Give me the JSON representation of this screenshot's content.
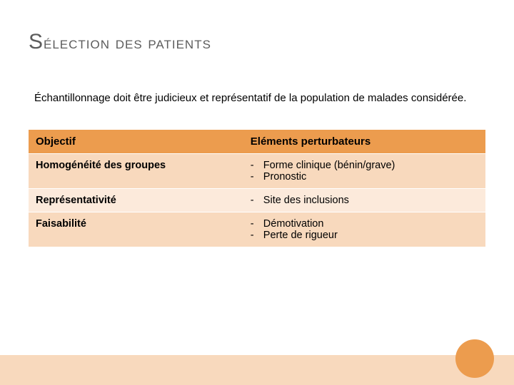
{
  "title": {
    "first_char": "S",
    "rest": "élection des patients"
  },
  "intro": "Échantillonnage doit être judicieux et représentatif de la population de malades considérée.",
  "table": {
    "header_bg": "#ec9c4e",
    "row_colors": [
      "#f8d9bd",
      "#fceadb",
      "#f8d9bd"
    ],
    "columns": [
      "Objectif",
      "Eléments perturbateurs"
    ],
    "rows": [
      {
        "left": "Homogénéité des groupes",
        "right": [
          "Forme clinique (bénin/grave)",
          "Pronostic"
        ]
      },
      {
        "left": "Représentativité",
        "right": [
          "Site des inclusions"
        ]
      },
      {
        "left": "Faisabilité",
        "right": [
          "Démotivation",
          "Perte de rigueur"
        ]
      }
    ]
  },
  "decor": {
    "footer_bar_color": "#f8d9bd",
    "circle_color": "#ec9c4e"
  }
}
